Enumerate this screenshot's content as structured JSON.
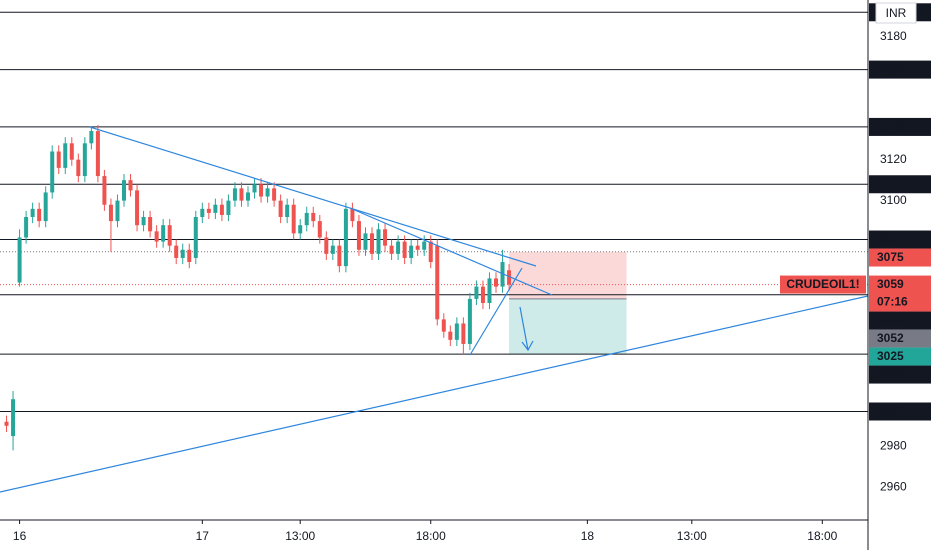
{
  "chart_data": {
    "type": "candlestick",
    "currency": "INR",
    "symbol": "CRUDEOIL1!",
    "countdown": "07:16",
    "up_color": "#26a69a",
    "down_color": "#ef5350",
    "level_color": "#131722",
    "ylim": [
      2944,
      3198
    ],
    "yticks": [
      2960,
      2980,
      3100,
      3120,
      3180
    ],
    "xlim": [
      0,
      133
    ],
    "xticks": [
      {
        "value": 3,
        "label": "16"
      },
      {
        "value": 31,
        "label": "17"
      },
      {
        "value": 46,
        "label": "13:00"
      },
      {
        "value": 66,
        "label": "18:00"
      },
      {
        "value": 90,
        "label": "18"
      },
      {
        "value": 106,
        "label": "13:00"
      },
      {
        "value": 126,
        "label": "18:00"
      }
    ],
    "x": [
      1,
      2,
      3,
      4,
      5,
      6,
      7,
      8,
      9,
      10,
      11,
      12,
      13,
      14,
      15,
      16,
      17,
      18,
      19,
      20,
      21,
      22,
      23,
      24,
      25,
      26,
      27,
      28,
      29,
      30,
      31,
      32,
      33,
      34,
      35,
      36,
      37,
      38,
      39,
      40,
      41,
      42,
      43,
      44,
      45,
      46,
      47,
      48,
      49,
      50,
      51,
      52,
      53,
      54,
      55,
      56,
      57,
      58,
      59,
      60,
      61,
      62,
      63,
      64,
      65,
      66,
      67,
      68,
      69,
      70,
      71,
      72,
      73,
      74,
      75,
      76,
      77,
      78
    ],
    "open": [
      2992,
      2985,
      3060,
      3082,
      3092,
      3096,
      3090,
      3104,
      3124,
      3116,
      3128,
      3120,
      3112,
      3128,
      3134,
      3112,
      3098,
      3090,
      3100,
      3110,
      3105,
      3088,
      3092,
      3085,
      3080,
      3088,
      3078,
      3072,
      3076,
      3072,
      3092,
      3096,
      3094,
      3098,
      3093,
      3100,
      3106,
      3100,
      3104,
      3108,
      3102,
      3106,
      3100,
      3092,
      3098,
      3084,
      3088,
      3094,
      3090,
      3082,
      3074,
      3078,
      3068,
      3096,
      3090,
      3076,
      3084,
      3074,
      3086,
      3078,
      3074,
      3080,
      3072,
      3078,
      3076,
      3080,
      3078,
      3042,
      3036,
      3032,
      3040,
      3030,
      3052,
      3058,
      3050,
      3062,
      3058,
      3066
    ],
    "high": [
      2995,
      3007,
      3086,
      3095,
      3099,
      3099,
      3107,
      3127,
      3127,
      3131,
      3131,
      3123,
      3131,
      3136,
      3137,
      3115,
      3101,
      3103,
      3113,
      3113,
      3108,
      3095,
      3095,
      3088,
      3091,
      3091,
      3081,
      3079,
      3079,
      3095,
      3099,
      3099,
      3101,
      3101,
      3103,
      3109,
      3109,
      3107,
      3111,
      3111,
      3109,
      3109,
      3103,
      3101,
      3101,
      3091,
      3097,
      3097,
      3093,
      3085,
      3081,
      3081,
      3099,
      3099,
      3093,
      3087,
      3087,
      3089,
      3089,
      3081,
      3083,
      3083,
      3081,
      3081,
      3083,
      3083,
      3081,
      3045,
      3039,
      3043,
      3043,
      3055,
      3061,
      3061,
      3065,
      3065,
      3076,
      3069
    ],
    "low": [
      2987,
      2978,
      3058,
      3079,
      3089,
      3087,
      3087,
      3101,
      3113,
      3113,
      3117,
      3109,
      3109,
      3125,
      3109,
      3095,
      3075,
      3087,
      3097,
      3102,
      3085,
      3085,
      3082,
      3077,
      3077,
      3075,
      3069,
      3069,
      3067,
      3069,
      3089,
      3091,
      3091,
      3090,
      3090,
      3097,
      3097,
      3097,
      3101,
      3099,
      3099,
      3097,
      3089,
      3089,
      3081,
      3081,
      3085,
      3087,
      3079,
      3071,
      3071,
      3065,
      3065,
      3087,
      3073,
      3073,
      3071,
      3071,
      3075,
      3071,
      3071,
      3069,
      3069,
      3073,
      3073,
      3067,
      3039,
      3033,
      3029,
      3029,
      3025,
      3027,
      3049,
      3047,
      3047,
      3055,
      3055,
      3056
    ],
    "close": [
      2990,
      3003,
      3082,
      3092,
      3096,
      3090,
      3104,
      3124,
      3116,
      3128,
      3120,
      3112,
      3128,
      3134,
      3112,
      3098,
      3090,
      3100,
      3110,
      3105,
      3088,
      3092,
      3085,
      3080,
      3088,
      3078,
      3072,
      3076,
      3070,
      3092,
      3096,
      3094,
      3098,
      3093,
      3100,
      3106,
      3100,
      3104,
      3108,
      3102,
      3106,
      3100,
      3092,
      3098,
      3084,
      3088,
      3094,
      3090,
      3082,
      3074,
      3078,
      3068,
      3096,
      3090,
      3076,
      3084,
      3074,
      3086,
      3078,
      3074,
      3080,
      3072,
      3078,
      3076,
      3080,
      3070,
      3042,
      3036,
      3032,
      3040,
      3030,
      3052,
      3058,
      3050,
      3062,
      3058,
      3070,
      3059
    ],
    "last_price": 3059,
    "levels": [
      3192,
      3164,
      3136,
      3108,
      3081,
      3054,
      3025,
      2997
    ],
    "position": {
      "start": 78,
      "end": 96,
      "entry": 3052,
      "stop": 3075,
      "target": 3025,
      "stop_color": "#ef5350",
      "entry_color": "#787b86",
      "target_color": "#22a699"
    }
  }
}
